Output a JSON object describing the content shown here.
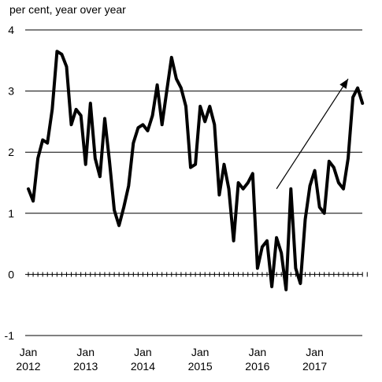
{
  "chart_data": {
    "type": "line",
    "title": "",
    "ylabel": "per cent, year over year",
    "xlabel": "",
    "ylim": [
      -1,
      4
    ],
    "yticks": [
      -1,
      0,
      1,
      2,
      3,
      4
    ],
    "grid": true,
    "legend": "none",
    "x_tick_labels": [
      {
        "line1": "Jan",
        "line2": "2012"
      },
      {
        "line1": "Jan",
        "line2": "2013"
      },
      {
        "line1": "Jan",
        "line2": "2014"
      },
      {
        "line1": "Jan",
        "line2": "2015"
      },
      {
        "line1": "Jan",
        "line2": "2016"
      },
      {
        "line1": "Jan",
        "line2": "2017"
      }
    ],
    "x_start": "2012-01",
    "x_frequency": "monthly",
    "series": [
      {
        "values": [
          1.4,
          1.2,
          1.9,
          2.2,
          2.15,
          2.7,
          3.65,
          3.6,
          3.4,
          2.45,
          2.7,
          2.6,
          1.8,
          2.8,
          1.9,
          1.6,
          2.55,
          1.85,
          1.05,
          0.8,
          1.1,
          1.45,
          2.15,
          2.4,
          2.45,
          2.35,
          2.6,
          3.1,
          2.45,
          3.0,
          3.55,
          3.2,
          3.05,
          2.75,
          1.75,
          1.8,
          2.75,
          2.5,
          2.75,
          2.45,
          1.3,
          1.8,
          1.4,
          0.55,
          1.5,
          1.4,
          1.5,
          1.65,
          0.1,
          0.45,
          0.55,
          -0.2,
          0.6,
          0.35,
          -0.25,
          1.4,
          0.1,
          -0.15,
          0.9,
          1.45,
          1.7,
          1.1,
          1.0,
          1.85,
          1.75,
          1.5,
          1.4,
          1.9,
          2.9,
          3.05,
          2.8
        ],
        "color": "#000000"
      }
    ],
    "annotation": {
      "type": "arrow",
      "from": {
        "x": "2016-05",
        "y": 1.4
      },
      "to": {
        "x": "2017-08",
        "y": 3.2
      }
    }
  }
}
